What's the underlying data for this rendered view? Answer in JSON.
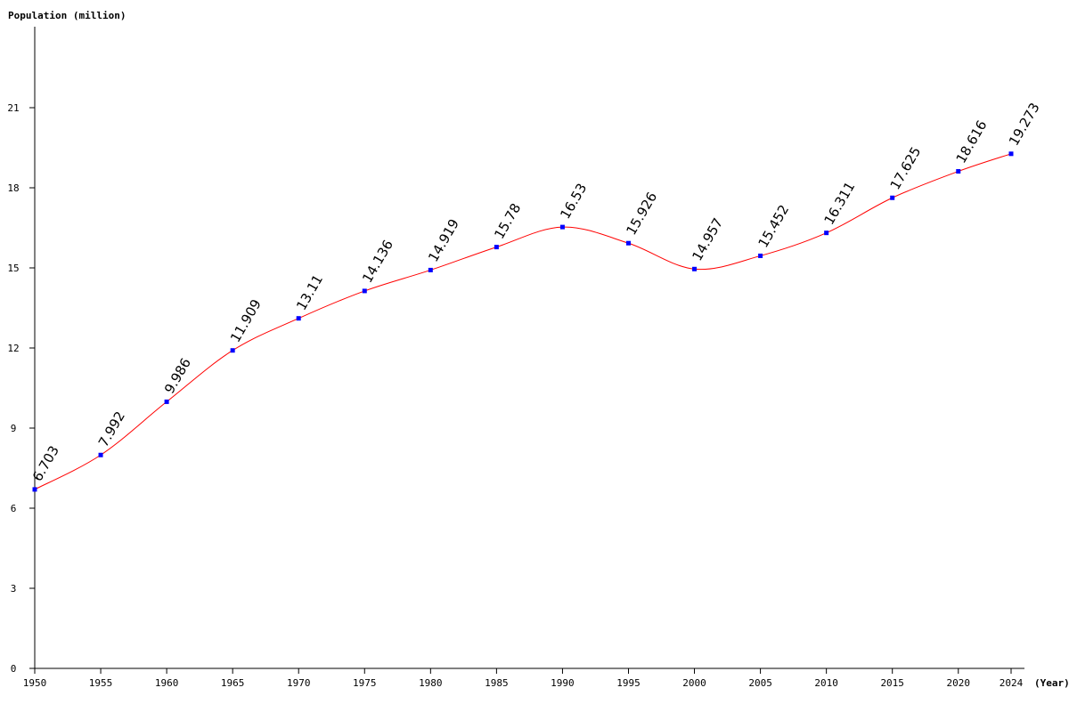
{
  "chart_data": {
    "type": "line",
    "ylabel": "Population (million)",
    "xlabel": "(Year)",
    "x": [
      1950,
      1955,
      1960,
      1965,
      1970,
      1975,
      1980,
      1985,
      1990,
      1995,
      2000,
      2005,
      2010,
      2015,
      2020,
      2024
    ],
    "x_tick_labels": [
      "1950",
      "1955",
      "1960",
      "1965",
      "1970",
      "1975",
      "1980",
      "1985",
      "1990",
      "1995",
      "2000",
      "2005",
      "2010",
      "2015",
      "2020",
      "2024"
    ],
    "series": [
      {
        "values": [
          6.703,
          7.992,
          9.986,
          11.909,
          13.11,
          14.136,
          14.919,
          15.78,
          16.53,
          15.926,
          14.957,
          15.452,
          16.311,
          17.625,
          18.616,
          19.273
        ],
        "data_labels": [
          "6.703",
          "7.992",
          "9.986",
          "11.909",
          "13.11",
          "14.136",
          "14.919",
          "15.78",
          "16.53",
          "15.926",
          "14.957",
          "15.452",
          "16.311",
          "17.625",
          "18.616",
          "19.273"
        ]
      }
    ],
    "y_ticks": [
      0,
      3,
      6,
      9,
      12,
      15,
      18,
      21
    ],
    "y_tick_labels": [
      "0",
      "3",
      "6",
      "9",
      "12",
      "15",
      "18",
      "21"
    ],
    "ylim": [
      0,
      24
    ],
    "xlim": [
      1950,
      2024
    ],
    "grid": false,
    "line_color": "#ff0000",
    "marker_color": "#0000ff",
    "axis_color": "#000000"
  }
}
